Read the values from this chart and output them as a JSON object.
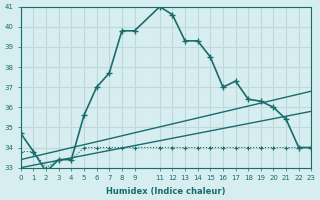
{
  "xlabel": "Humidex (Indice chaleur)",
  "bg_color": "#d6eef0",
  "grid_color": "#c0d8da",
  "line_color": "#1a6b6b",
  "xlim": [
    0,
    23
  ],
  "ylim": [
    33,
    41
  ],
  "yticks": [
    33,
    34,
    35,
    36,
    37,
    38,
    39,
    40,
    41
  ],
  "xticks": [
    0,
    1,
    2,
    3,
    4,
    5,
    6,
    7,
    8,
    9,
    11,
    12,
    13,
    14,
    15,
    16,
    17,
    18,
    19,
    20,
    21,
    22,
    23
  ],
  "xticklabels": [
    "0",
    "1",
    "2",
    "3",
    "4",
    "5",
    "6",
    "7",
    "8",
    "9",
    "11",
    "12",
    "13",
    "14",
    "15",
    "16",
    "17",
    "18",
    "19",
    "20",
    "21",
    "22",
    "23"
  ],
  "series1_x": [
    0,
    1,
    2,
    3,
    4,
    5,
    6,
    7,
    8,
    9,
    11,
    12,
    13,
    14,
    15,
    16,
    17,
    18,
    19,
    20,
    21,
    22,
    23
  ],
  "series1_y": [
    34.7,
    33.8,
    32.8,
    33.4,
    33.4,
    35.6,
    37.0,
    37.7,
    39.8,
    39.8,
    41.0,
    40.6,
    39.3,
    39.3,
    38.5,
    37.0,
    37.3,
    36.4,
    36.3,
    36.0,
    35.4,
    34.0,
    34.0
  ],
  "series2_x": [
    0,
    1,
    2,
    3,
    4,
    5,
    6,
    7,
    8,
    9,
    11,
    12,
    13,
    14,
    15,
    16,
    17,
    18,
    19,
    20,
    21,
    22,
    23
  ],
  "series2_y": [
    33.8,
    33.8,
    33.0,
    33.4,
    33.4,
    34.0,
    34.0,
    34.0,
    34.0,
    34.0,
    34.0,
    34.0,
    34.0,
    34.0,
    34.0,
    34.0,
    34.0,
    34.0,
    34.0,
    34.0,
    34.0,
    34.0,
    34.0
  ],
  "series3_x": [
    0,
    23
  ],
  "series3_y": [
    33.0,
    35.8
  ],
  "series4_x": [
    0,
    23
  ],
  "series4_y": [
    33.4,
    36.8
  ]
}
